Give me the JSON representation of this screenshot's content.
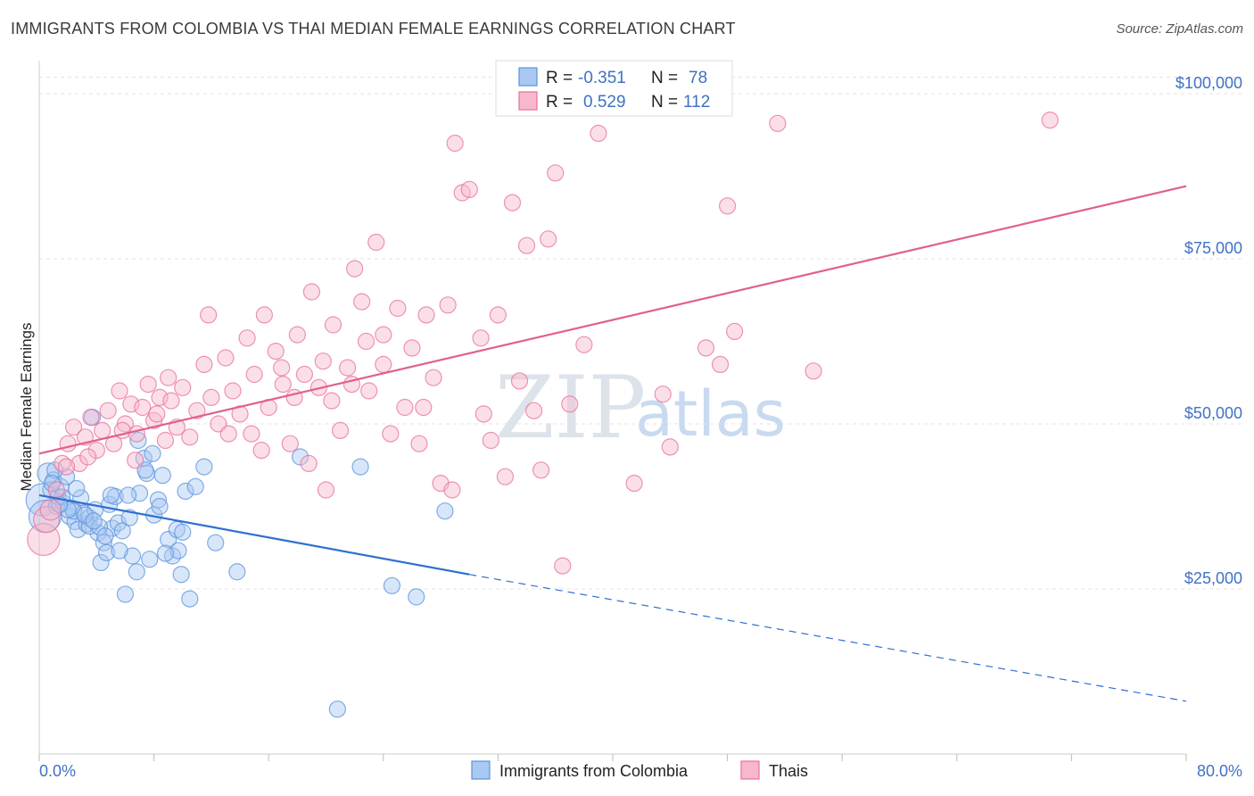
{
  "title": "IMMIGRANTS FROM COLOMBIA VS THAI MEDIAN FEMALE EARNINGS CORRELATION CHART",
  "source": "Source: ZipAtlas.com",
  "watermark": {
    "zip": "ZIP",
    "atlas": "atlas"
  },
  "legend": {
    "r_label": "R =",
    "n_label": "N =",
    "rows": [
      {
        "r": "-0.351",
        "n": "78",
        "color": "#a9c8f2"
      },
      {
        "r": "0.529",
        "n": "112",
        "color": "#f7b8cb"
      }
    ]
  },
  "bottom_legend": [
    {
      "label": "Immigrants from Colombia",
      "color": "#a9c8f2"
    },
    {
      "label": "Thais",
      "color": "#f7b8cb"
    }
  ],
  "chart_data": {
    "type": "scatter",
    "title": "IMMIGRANTS FROM COLOMBIA VS THAI MEDIAN FEMALE EARNINGS CORRELATION CHART",
    "xlabel": "",
    "ylabel": "Median Female Earnings",
    "xlim": [
      0,
      80
    ],
    "ylim": [
      0,
      105000
    ],
    "x_tick_labels": [
      "0.0%",
      "80.0%"
    ],
    "y_ticks": [
      {
        "value": 25000,
        "label": "$25,000"
      },
      {
        "value": 50000,
        "label": "$50,000"
      },
      {
        "value": 75000,
        "label": "$75,000"
      },
      {
        "value": 100000,
        "label": "$100,000"
      }
    ],
    "series": [
      {
        "name": "Immigrants from Colombia",
        "color": "#5b93dc",
        "fill": "#a9c8f2",
        "trend": {
          "x0": 0,
          "y0": 39200,
          "x1": 30,
          "y1": 27200,
          "dash_to_x": 80,
          "dash_to_y": 8000
        },
        "points": [
          [
            0.2,
            38500,
            2
          ],
          [
            0.4,
            36000,
            2
          ],
          [
            0.6,
            42500,
            1.3
          ],
          [
            0.8,
            40000,
            1
          ],
          [
            1.0,
            41500,
            1
          ],
          [
            1.2,
            37500,
            1
          ],
          [
            1.3,
            39000,
            1
          ],
          [
            1.5,
            40500,
            1
          ],
          [
            1.7,
            38000,
            1
          ],
          [
            1.9,
            42000,
            1
          ],
          [
            2.1,
            36000,
            1
          ],
          [
            2.3,
            37200,
            1
          ],
          [
            2.5,
            35200,
            1
          ],
          [
            2.7,
            34000,
            1
          ],
          [
            2.9,
            38800,
            1
          ],
          [
            3.1,
            36500,
            1
          ],
          [
            3.3,
            34800,
            1
          ],
          [
            3.5,
            35800,
            1
          ],
          [
            3.7,
            51000,
            1
          ],
          [
            3.9,
            37000,
            1
          ],
          [
            4.1,
            33500,
            1
          ],
          [
            4.3,
            29000,
            1
          ],
          [
            4.5,
            32000,
            1
          ],
          [
            4.7,
            30500,
            1
          ],
          [
            4.9,
            37800,
            1
          ],
          [
            5.1,
            34200,
            1
          ],
          [
            5.3,
            39000,
            1
          ],
          [
            5.5,
            35000,
            1
          ],
          [
            5.8,
            33800,
            1
          ],
          [
            6.0,
            24200,
            1
          ],
          [
            6.3,
            35800,
            1
          ],
          [
            6.5,
            30000,
            1
          ],
          [
            6.8,
            27600,
            1
          ],
          [
            7.0,
            39500,
            1
          ],
          [
            7.3,
            44800,
            1
          ],
          [
            7.5,
            42500,
            1
          ],
          [
            7.7,
            29500,
            1
          ],
          [
            8.0,
            36200,
            1
          ],
          [
            8.3,
            38500,
            1
          ],
          [
            8.6,
            42200,
            1
          ],
          [
            9.0,
            32500,
            1
          ],
          [
            9.3,
            30000,
            1
          ],
          [
            9.6,
            34000,
            1
          ],
          [
            9.9,
            27200,
            1
          ],
          [
            10.2,
            39800,
            1
          ],
          [
            10.5,
            23500,
            1
          ],
          [
            10.9,
            40500,
            1
          ],
          [
            11.5,
            43500,
            1
          ],
          [
            12.3,
            32000,
            1
          ],
          [
            13.8,
            27600,
            1
          ],
          [
            18.2,
            45000,
            1
          ],
          [
            20.8,
            6800,
            1
          ],
          [
            22.4,
            43500,
            1
          ],
          [
            24.6,
            25500,
            1
          ],
          [
            26.3,
            23800,
            1
          ],
          [
            28.3,
            36800,
            1
          ],
          [
            3.5,
            34500,
            1
          ],
          [
            2.6,
            40200,
            1
          ],
          [
            1.1,
            43000,
            1
          ],
          [
            6.2,
            39200,
            1
          ],
          [
            7.9,
            45500,
            1
          ],
          [
            5.6,
            30800,
            1
          ],
          [
            4.2,
            34400,
            1
          ],
          [
            9.7,
            30800,
            1
          ],
          [
            2.4,
            36800,
            1
          ],
          [
            3.2,
            36200,
            1
          ],
          [
            1.6,
            38900,
            1
          ],
          [
            8.8,
            30400,
            1
          ],
          [
            4.6,
            33000,
            1
          ],
          [
            6.9,
            47500,
            1
          ],
          [
            5.0,
            39200,
            1
          ],
          [
            3.8,
            35300,
            1
          ],
          [
            0.9,
            41000,
            1
          ],
          [
            2.0,
            37000,
            1
          ],
          [
            10.0,
            33600,
            1
          ],
          [
            7.4,
            43000,
            1
          ],
          [
            8.4,
            37500,
            1
          ],
          [
            1.4,
            37800,
            1
          ]
        ]
      },
      {
        "name": "Thais",
        "color": "#e8709a",
        "fill": "#f7b8cb",
        "trend": {
          "x0": 0,
          "y0": 45500,
          "x1": 80,
          "y1": 86000
        },
        "points": [
          [
            0.3,
            32500,
            2
          ],
          [
            0.5,
            35500,
            1.6
          ],
          [
            0.8,
            37000,
            1.3
          ],
          [
            1.2,
            40000,
            1
          ],
          [
            1.6,
            44000,
            1
          ],
          [
            2.0,
            47000,
            1
          ],
          [
            2.4,
            49500,
            1
          ],
          [
            2.8,
            44000,
            1
          ],
          [
            3.2,
            48000,
            1
          ],
          [
            3.6,
            51000,
            1
          ],
          [
            4.0,
            46000,
            1
          ],
          [
            4.4,
            49000,
            1
          ],
          [
            4.8,
            52000,
            1
          ],
          [
            5.2,
            47000,
            1
          ],
          [
            5.6,
            55000,
            1
          ],
          [
            6.0,
            50000,
            1
          ],
          [
            6.4,
            53000,
            1
          ],
          [
            6.8,
            48500,
            1
          ],
          [
            7.2,
            52500,
            1
          ],
          [
            7.6,
            56000,
            1
          ],
          [
            8.0,
            50500,
            1
          ],
          [
            8.4,
            54000,
            1
          ],
          [
            8.8,
            47500,
            1
          ],
          [
            9.2,
            53500,
            1
          ],
          [
            9.6,
            49500,
            1
          ],
          [
            10.0,
            55500,
            1
          ],
          [
            10.5,
            48000,
            1
          ],
          [
            11.0,
            52000,
            1
          ],
          [
            11.5,
            59000,
            1
          ],
          [
            12.0,
            54000,
            1
          ],
          [
            12.5,
            50000,
            1
          ],
          [
            13.0,
            60000,
            1
          ],
          [
            13.5,
            55000,
            1
          ],
          [
            14.0,
            51500,
            1
          ],
          [
            14.5,
            63000,
            1
          ],
          [
            15.0,
            57500,
            1
          ],
          [
            15.5,
            46000,
            1
          ],
          [
            16.0,
            52500,
            1
          ],
          [
            16.5,
            61000,
            1
          ],
          [
            17.0,
            56000,
            1
          ],
          [
            17.5,
            47000,
            1
          ],
          [
            18.0,
            63500,
            1
          ],
          [
            18.5,
            57500,
            1
          ],
          [
            19.0,
            70000,
            1
          ],
          [
            19.5,
            55500,
            1
          ],
          [
            20.0,
            40000,
            1
          ],
          [
            20.5,
            65000,
            1
          ],
          [
            21.0,
            49000,
            1
          ],
          [
            21.5,
            58500,
            1
          ],
          [
            22.0,
            73500,
            1
          ],
          [
            22.5,
            68500,
            1
          ],
          [
            23.0,
            55000,
            1
          ],
          [
            23.5,
            77500,
            1
          ],
          [
            24.0,
            59000,
            1
          ],
          [
            24.5,
            48500,
            1
          ],
          [
            25.0,
            67500,
            1
          ],
          [
            25.5,
            52500,
            1
          ],
          [
            26.0,
            61500,
            1
          ],
          [
            26.5,
            47000,
            1
          ],
          [
            27.0,
            66500,
            1
          ],
          [
            27.5,
            57000,
            1
          ],
          [
            28.0,
            41000,
            1
          ],
          [
            28.5,
            68000,
            1
          ],
          [
            29.0,
            92500,
            1
          ],
          [
            29.5,
            85000,
            1
          ],
          [
            30.0,
            85500,
            1
          ],
          [
            31.0,
            51500,
            1
          ],
          [
            31.5,
            47500,
            1
          ],
          [
            32.0,
            66500,
            1
          ],
          [
            32.5,
            42000,
            1
          ],
          [
            33.0,
            83500,
            1
          ],
          [
            33.5,
            56500,
            1
          ],
          [
            34.0,
            77000,
            1
          ],
          [
            34.5,
            52000,
            1
          ],
          [
            35.0,
            43000,
            1
          ],
          [
            35.5,
            78000,
            1
          ],
          [
            36.0,
            88000,
            1
          ],
          [
            36.5,
            28500,
            1
          ],
          [
            37.0,
            53000,
            1
          ],
          [
            38.0,
            62000,
            1
          ],
          [
            39.0,
            94000,
            1
          ],
          [
            41.5,
            41000,
            1
          ],
          [
            43.5,
            54500,
            1
          ],
          [
            44.0,
            46500,
            1
          ],
          [
            46.5,
            61500,
            1
          ],
          [
            47.5,
            59000,
            1
          ],
          [
            48.0,
            83000,
            1
          ],
          [
            48.5,
            64000,
            1
          ],
          [
            51.5,
            95500,
            1
          ],
          [
            54.0,
            58000,
            1
          ],
          [
            70.5,
            96000,
            1
          ],
          [
            13.2,
            48500,
            1
          ],
          [
            9.0,
            57000,
            1
          ],
          [
            6.7,
            44500,
            1
          ],
          [
            15.7,
            66500,
            1
          ],
          [
            19.8,
            59500,
            1
          ],
          [
            24.0,
            63500,
            1
          ],
          [
            28.8,
            40000,
            1
          ],
          [
            30.8,
            63000,
            1
          ],
          [
            22.8,
            62500,
            1
          ],
          [
            17.8,
            54000,
            1
          ],
          [
            11.8,
            66500,
            1
          ],
          [
            8.2,
            51500,
            1
          ],
          [
            3.4,
            45000,
            1
          ],
          [
            1.9,
            43500,
            1
          ],
          [
            21.8,
            56000,
            1
          ],
          [
            26.8,
            52500,
            1
          ],
          [
            20.4,
            53500,
            1
          ],
          [
            16.9,
            58500,
            1
          ],
          [
            14.8,
            48500,
            1
          ],
          [
            18.8,
            44000,
            1
          ],
          [
            5.8,
            49000,
            1
          ]
        ]
      }
    ]
  }
}
